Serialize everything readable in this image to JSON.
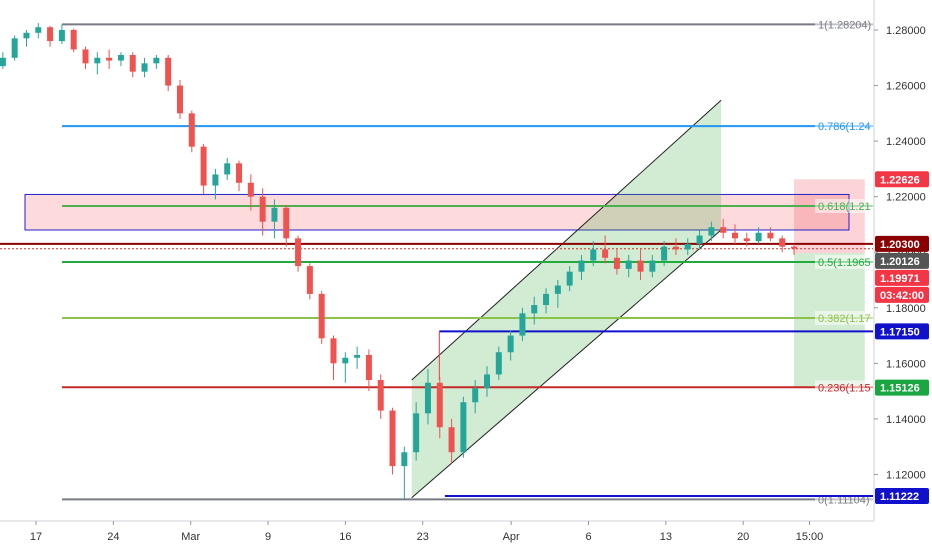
{
  "chart_data": {
    "type": "candlestick",
    "instrument_note": "",
    "price_range": [
      1.1036,
      1.2908
    ],
    "y_ticks": [
      "1.28000",
      "1.26000",
      "1.24000",
      "1.22000",
      "1.20000",
      "1.18000",
      "1.16000",
      "1.14000",
      "1.12000"
    ],
    "y_tick_values": [
      1.28,
      1.26,
      1.24,
      1.22,
      1.2,
      1.18,
      1.16,
      1.14,
      1.12
    ],
    "x_ticks": [
      "17",
      "24",
      "Mar",
      "9",
      "16",
      "23",
      "Apr",
      "6",
      "13",
      "20",
      "15:00"
    ],
    "x_tick_slots": [
      0,
      7,
      14,
      21,
      28,
      35,
      43,
      50,
      57,
      64,
      70
    ],
    "slot_count": 75,
    "fibonacci": {
      "levels": [
        {
          "label": "1(1.28204)",
          "value": 1.28204,
          "color": "#787b86"
        },
        {
          "label": "0.786(1.24",
          "value": 1.2454,
          "color": "#2196f3"
        },
        {
          "label": "0.618(1.21",
          "value": 1.21665,
          "color": "#4caf50"
        },
        {
          "label": "0.5(1.1965",
          "value": 1.1965,
          "color": "#22ab3c"
        },
        {
          "label": "0.382(1.17",
          "value": 1.17634,
          "color": "#8bc34a"
        },
        {
          "label": "0.236(1.15",
          "value": 1.15137,
          "color": "#c62828"
        },
        {
          "label": "0(1.11104)",
          "value": 1.11104,
          "color": "#787b86"
        }
      ]
    },
    "price_badges": [
      {
        "label": "1.22626",
        "value": 1.22626,
        "color": "#f23645"
      },
      {
        "label": "1.20300",
        "value": 1.203,
        "color": "#8b0000"
      },
      {
        "label": "1.20126",
        "value": 1.20126,
        "color": "#555555"
      },
      {
        "label": "1.19971",
        "value": 1.19971,
        "color": "#f23645"
      },
      {
        "label": "03:42:00",
        "value": 1.1944,
        "color": "#f23645"
      },
      {
        "label": "1.17150",
        "value": 1.1715,
        "color": "#1111cc"
      },
      {
        "label": "1.15126",
        "value": 1.15126,
        "color": "#1aa640"
      },
      {
        "label": "1.11222",
        "value": 1.11222,
        "color": "#1111cc"
      }
    ],
    "resistance_zone": {
      "top": 1.2208,
      "bottom": 1.208
    },
    "horizontal_rays": [
      {
        "value": 1.203,
        "color": "#8b0000",
        "style": "solid",
        "from_slot": -3
      },
      {
        "value": 1.20126,
        "color": "#cc3333",
        "style": "dotted",
        "from_slot": -3
      },
      {
        "value": 1.1715,
        "color": "#1111cc",
        "style": "solid",
        "from_slot": 36.5
      },
      {
        "value": 1.11222,
        "color": "#1111cc",
        "style": "solid",
        "from_slot": 37
      }
    ],
    "channel": {
      "start_slot": 34,
      "end_slot": 62,
      "lower_start": 1.1116,
      "lower_end": 1.208,
      "upper_start": 1.154,
      "upper_end": 1.2547
    },
    "position": {
      "from_slot": 68.6,
      "to_slot": 75,
      "stop": 1.22626,
      "entry": 1.19971,
      "target": 1.15126
    },
    "candles": [
      [
        1.267,
        1.272,
        1.266,
        1.27
      ],
      [
        1.27,
        1.278,
        1.269,
        1.277
      ],
      [
        1.277,
        1.28,
        1.274,
        1.279
      ],
      [
        1.279,
        1.2825,
        1.277,
        1.281
      ],
      [
        1.281,
        1.2815,
        1.274,
        1.276
      ],
      [
        1.276,
        1.282,
        1.275,
        1.28
      ],
      [
        1.28,
        1.2805,
        1.272,
        1.273
      ],
      [
        1.273,
        1.274,
        1.266,
        1.268
      ],
      [
        1.268,
        1.272,
        1.264,
        1.27
      ],
      [
        1.27,
        1.273,
        1.266,
        1.269
      ],
      [
        1.269,
        1.272,
        1.267,
        1.271
      ],
      [
        1.271,
        1.272,
        1.263,
        1.265
      ],
      [
        1.265,
        1.27,
        1.263,
        1.268
      ],
      [
        1.268,
        1.271,
        1.266,
        1.27
      ],
      [
        1.27,
        1.271,
        1.258,
        1.26
      ],
      [
        1.26,
        1.262,
        1.248,
        1.25
      ],
      [
        1.25,
        1.251,
        1.236,
        1.238
      ],
      [
        1.238,
        1.239,
        1.221,
        1.224
      ],
      [
        1.224,
        1.23,
        1.219,
        1.228
      ],
      [
        1.228,
        1.234,
        1.226,
        1.232
      ],
      [
        1.232,
        1.233,
        1.222,
        1.225
      ],
      [
        1.225,
        1.228,
        1.215,
        1.22
      ],
      [
        1.22,
        1.223,
        1.206,
        1.211
      ],
      [
        1.211,
        1.219,
        1.205,
        1.216
      ],
      [
        1.216,
        1.217,
        1.202,
        1.205
      ],
      [
        1.205,
        1.206,
        1.193,
        1.195
      ],
      [
        1.195,
        1.196,
        1.183,
        1.185
      ],
      [
        1.185,
        1.186,
        1.167,
        1.169
      ],
      [
        1.169,
        1.17,
        1.154,
        1.16
      ],
      [
        1.16,
        1.164,
        1.153,
        1.162
      ],
      [
        1.162,
        1.166,
        1.158,
        1.163
      ],
      [
        1.163,
        1.165,
        1.15,
        1.154
      ],
      [
        1.154,
        1.156,
        1.14,
        1.143
      ],
      [
        1.143,
        1.144,
        1.12,
        1.123
      ],
      [
        1.123,
        1.13,
        1.111,
        1.128
      ],
      [
        1.128,
        1.146,
        1.125,
        1.142
      ],
      [
        1.142,
        1.158,
        1.138,
        1.153
      ],
      [
        1.153,
        1.155,
        1.133,
        1.137
      ],
      [
        1.137,
        1.14,
        1.124,
        1.128
      ],
      [
        1.128,
        1.148,
        1.126,
        1.146
      ],
      [
        1.146,
        1.154,
        1.142,
        1.151
      ],
      [
        1.151,
        1.159,
        1.148,
        1.156
      ],
      [
        1.156,
        1.166,
        1.154,
        1.164
      ],
      [
        1.164,
        1.172,
        1.161,
        1.17
      ],
      [
        1.17,
        1.18,
        1.168,
        1.178
      ],
      [
        1.178,
        1.184,
        1.174,
        1.181
      ],
      [
        1.181,
        1.187,
        1.178,
        1.185
      ],
      [
        1.185,
        1.19,
        1.18,
        1.188
      ],
      [
        1.188,
        1.195,
        1.186,
        1.193
      ],
      [
        1.193,
        1.199,
        1.19,
        1.197
      ],
      [
        1.197,
        1.204,
        1.195,
        1.201
      ],
      [
        1.201,
        1.206,
        1.196,
        1.198
      ],
      [
        1.198,
        1.201,
        1.192,
        1.194
      ],
      [
        1.194,
        1.199,
        1.191,
        1.197
      ],
      [
        1.197,
        1.201,
        1.19,
        1.193
      ],
      [
        1.193,
        1.199,
        1.191,
        1.197
      ],
      [
        1.197,
        1.204,
        1.195,
        1.202
      ],
      [
        1.202,
        1.205,
        1.199,
        1.201
      ],
      [
        1.201,
        1.205,
        1.199,
        1.203
      ],
      [
        1.203,
        1.208,
        1.201,
        1.206
      ],
      [
        1.206,
        1.211,
        1.204,
        1.209
      ],
      [
        1.209,
        1.212,
        1.205,
        1.207
      ],
      [
        1.207,
        1.21,
        1.203,
        1.205
      ],
      [
        1.205,
        1.207,
        1.202,
        1.204
      ],
      [
        1.204,
        1.209,
        1.203,
        1.207
      ],
      [
        1.207,
        1.209,
        1.204,
        1.205
      ],
      [
        1.205,
        1.206,
        1.2,
        1.202
      ],
      [
        1.202,
        1.203,
        1.199,
        1.2013
      ]
    ]
  }
}
